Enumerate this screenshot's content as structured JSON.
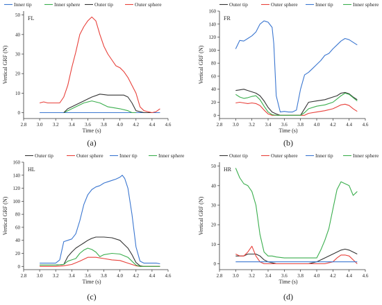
{
  "colors": {
    "Outer tip": "#333333",
    "Outer sphere": "#e8403a",
    "Inner tip": "#3a76d0",
    "Inner sphere": "#3aae4d"
  },
  "chart_data": [
    {
      "type": "line",
      "panel_letter": "(a)",
      "corner_label": "FL",
      "xlabel": "Time (s)",
      "ylabel": "Vertical GRF (N)",
      "xlim": [
        2.8,
        4.6
      ],
      "ylim": [
        -3,
        52
      ],
      "xticks": [
        "2.8",
        "3.0",
        "3.2",
        "3.4",
        "3.6",
        "3.8",
        "4.0",
        "4.2",
        "4.4",
        "4.6"
      ],
      "yticks": [
        "0",
        "10",
        "20",
        "30",
        "40",
        "50"
      ],
      "legend_order": [
        "Inner tip",
        "Inner sphere",
        "Outer tip",
        "Outer sphere"
      ],
      "legend_position": "top",
      "series": [
        {
          "name": "Inner tip",
          "x": [
            3.0,
            3.3,
            3.45,
            3.6,
            3.75,
            3.9,
            4.05,
            4.15,
            4.2,
            4.3,
            4.4,
            4.5
          ],
          "y": [
            0,
            0,
            0,
            0,
            0,
            0,
            0,
            0,
            0,
            0,
            0,
            0
          ]
        },
        {
          "name": "Inner sphere",
          "x": [
            3.3,
            3.35,
            3.45,
            3.55,
            3.65,
            3.75,
            3.85,
            4.0,
            4.1,
            4.15,
            4.2
          ],
          "y": [
            0,
            1,
            3,
            5,
            6,
            5,
            3,
            2,
            1,
            0,
            0
          ]
        },
        {
          "name": "Outer tip",
          "x": [
            3.3,
            3.35,
            3.45,
            3.55,
            3.65,
            3.75,
            3.85,
            3.95,
            4.05,
            4.1,
            4.15,
            4.2,
            4.3,
            4.4
          ],
          "y": [
            0,
            2,
            4,
            6,
            8,
            9.5,
            9,
            9,
            9,
            8,
            5,
            1,
            0,
            0
          ]
        },
        {
          "name": "Outer sphere",
          "x": [
            3.0,
            3.05,
            3.1,
            3.15,
            3.2,
            3.25,
            3.3,
            3.35,
            3.4,
            3.45,
            3.5,
            3.55,
            3.6,
            3.65,
            3.7,
            3.75,
            3.8,
            3.85,
            3.9,
            3.95,
            4.0,
            4.05,
            4.1,
            4.15,
            4.2,
            4.25,
            4.3,
            4.35,
            4.4,
            4.45,
            4.5
          ],
          "y": [
            5,
            5.5,
            5,
            5,
            5,
            5,
            8,
            14,
            23,
            31,
            40,
            44,
            47,
            49,
            47,
            40,
            34,
            30,
            27,
            24,
            23,
            21,
            18,
            14,
            10,
            3,
            1,
            0.5,
            0,
            0.5,
            2
          ]
        }
      ]
    },
    {
      "type": "line",
      "panel_letter": "(b)",
      "corner_label": "FR",
      "xlabel": "Time (s)",
      "ylabel": "Vertical GRF (N)",
      "xlim": [
        2.8,
        4.6
      ],
      "ylim": [
        -5,
        160
      ],
      "xticks": [
        "2.8",
        "3.0",
        "3.2",
        "3.4",
        "3.6",
        "3.8",
        "4.0",
        "4.2",
        "4.4",
        "4.6"
      ],
      "yticks": [
        "0",
        "20",
        "40",
        "60",
        "80",
        "100",
        "120",
        "140",
        "160"
      ],
      "legend_order": [
        "Outer tip",
        "Outer sphere",
        "Inner tip",
        "Inner sphere"
      ],
      "legend_position": "top",
      "series": [
        {
          "name": "Outer tip",
          "x": [
            3.0,
            3.05,
            3.1,
            3.15,
            3.2,
            3.25,
            3.3,
            3.35,
            3.4,
            3.45,
            3.5,
            3.55,
            3.6,
            3.65,
            3.7,
            3.75,
            3.8,
            3.85,
            3.9,
            4.0,
            4.1,
            4.2,
            4.25,
            4.3,
            4.35,
            4.4,
            4.45,
            4.5
          ],
          "y": [
            38,
            39,
            40,
            38,
            36,
            34,
            30,
            22,
            12,
            5,
            2,
            0,
            0,
            0,
            0,
            0,
            0,
            10,
            20,
            22,
            24,
            28,
            30,
            34,
            35,
            33,
            28,
            24
          ]
        },
        {
          "name": "Outer sphere",
          "x": [
            3.0,
            3.05,
            3.1,
            3.15,
            3.2,
            3.25,
            3.3,
            3.35,
            3.4,
            3.45,
            3.5,
            3.6,
            3.7,
            3.8,
            3.85,
            3.9,
            4.0,
            4.1,
            4.2,
            4.25,
            4.3,
            4.35,
            4.4,
            4.45,
            4.5
          ],
          "y": [
            19,
            20,
            19,
            18,
            19,
            18,
            15,
            8,
            2,
            0,
            0,
            0,
            0,
            0,
            0,
            3,
            5,
            7,
            10,
            13,
            16,
            17,
            15,
            10,
            6
          ]
        },
        {
          "name": "Inner tip",
          "x": [
            3.0,
            3.05,
            3.1,
            3.15,
            3.2,
            3.25,
            3.3,
            3.35,
            3.4,
            3.45,
            3.47,
            3.5,
            3.55,
            3.6,
            3.65,
            3.7,
            3.75,
            3.8,
            3.85,
            3.9,
            3.95,
            4.0,
            4.05,
            4.1,
            4.15,
            4.2,
            4.25,
            4.3,
            4.35,
            4.4,
            4.45,
            4.5
          ],
          "y": [
            102,
            115,
            114,
            118,
            122,
            128,
            140,
            145,
            143,
            135,
            110,
            30,
            5,
            6,
            5,
            5,
            8,
            40,
            62,
            66,
            72,
            78,
            84,
            92,
            95,
            102,
            108,
            114,
            118,
            116,
            112,
            108
          ]
        },
        {
          "name": "Inner sphere",
          "x": [
            3.0,
            3.05,
            3.1,
            3.15,
            3.2,
            3.25,
            3.3,
            3.35,
            3.4,
            3.45,
            3.5,
            3.6,
            3.7,
            3.8,
            3.85,
            3.9,
            4.0,
            4.1,
            4.2,
            4.25,
            4.3,
            4.35,
            4.4,
            4.45,
            4.5
          ],
          "y": [
            32,
            28,
            26,
            27,
            29,
            30,
            24,
            14,
            5,
            1,
            0,
            0,
            0,
            0,
            4,
            10,
            14,
            16,
            20,
            25,
            30,
            34,
            32,
            27,
            22
          ]
        }
      ]
    },
    {
      "type": "line",
      "panel_letter": "(c)",
      "corner_label": "HL",
      "xlabel": "Time (s)",
      "ylabel": "Vertical GRF (N)",
      "xlim": [
        2.8,
        4.6
      ],
      "ylim": [
        -5,
        160
      ],
      "xticks": [
        "2.8",
        "3.0",
        "3.2",
        "3.4",
        "3.6",
        "3.8",
        "4.0",
        "4.2",
        "4.4",
        "4.6"
      ],
      "yticks": [
        "0",
        "20",
        "40",
        "60",
        "80",
        "100",
        "120",
        "140",
        "160"
      ],
      "legend_order": [
        "Outer tip",
        "Outer sphere",
        "Inner tip",
        "Inner sphere"
      ],
      "legend_position": "top",
      "series": [
        {
          "name": "Outer tip",
          "x": [
            3.0,
            3.2,
            3.3,
            3.35,
            3.4,
            3.45,
            3.5,
            3.55,
            3.6,
            3.65,
            3.7,
            3.8,
            3.9,
            4.0,
            4.05,
            4.1,
            4.15,
            4.2,
            4.25,
            4.3,
            4.5
          ],
          "y": [
            2,
            2,
            3,
            15,
            22,
            28,
            32,
            36,
            40,
            43,
            45,
            45,
            44,
            40,
            34,
            28,
            18,
            6,
            1,
            0,
            0
          ]
        },
        {
          "name": "Outer sphere",
          "x": [
            3.0,
            3.2,
            3.3,
            3.4,
            3.5,
            3.6,
            3.7,
            3.8,
            3.9,
            4.0,
            4.1,
            4.2,
            4.25,
            4.3,
            4.5
          ],
          "y": [
            0,
            0,
            1,
            3,
            8,
            14,
            14,
            12,
            10,
            9,
            5,
            1,
            0,
            0,
            0
          ]
        },
        {
          "name": "Inner tip",
          "x": [
            3.0,
            3.1,
            3.2,
            3.25,
            3.3,
            3.35,
            3.4,
            3.45,
            3.5,
            3.55,
            3.6,
            3.65,
            3.7,
            3.75,
            3.8,
            3.85,
            3.9,
            3.95,
            4.0,
            4.03,
            4.06,
            4.1,
            4.15,
            4.2,
            4.25,
            4.3,
            4.35,
            4.4,
            4.45,
            4.5
          ],
          "y": [
            5,
            5,
            5,
            10,
            38,
            40,
            42,
            50,
            70,
            95,
            110,
            118,
            122,
            124,
            128,
            130,
            132,
            134,
            137,
            140,
            135,
            120,
            80,
            30,
            8,
            5,
            5,
            5,
            5,
            4
          ]
        },
        {
          "name": "Inner sphere",
          "x": [
            3.0,
            3.2,
            3.3,
            3.35,
            3.4,
            3.45,
            3.5,
            3.55,
            3.6,
            3.65,
            3.7,
            3.75,
            3.8,
            3.9,
            4.0,
            4.1,
            4.15,
            4.2,
            4.25,
            4.3,
            4.5
          ],
          "y": [
            2,
            2,
            3,
            8,
            10,
            12,
            20,
            25,
            28,
            26,
            22,
            15,
            18,
            20,
            19,
            14,
            8,
            2,
            0,
            0,
            0
          ]
        }
      ]
    },
    {
      "type": "line",
      "panel_letter": "(d)",
      "corner_label": "HR",
      "xlabel": "Time (s)",
      "ylabel": "Vertical GRF (N)",
      "xlim": [
        2.8,
        4.6
      ],
      "ylim": [
        -3,
        52
      ],
      "xticks": [
        "2.8",
        "3.0",
        "3.2",
        "3.4",
        "3.6",
        "3.8",
        "4.0",
        "4.2",
        "4.4",
        "4.6"
      ],
      "yticks": [
        "0",
        "10",
        "20",
        "30",
        "40",
        "50"
      ],
      "legend_order": [
        "Outer tip",
        "Outer sphere",
        "Inner tip",
        "Inner sphere"
      ],
      "legend_position": "top",
      "series": [
        {
          "name": "Outer tip",
          "x": [
            3.0,
            3.05,
            3.1,
            3.15,
            3.2,
            3.25,
            3.3,
            3.35,
            3.4,
            3.5,
            3.6,
            3.7,
            3.8,
            3.9,
            4.0,
            4.1,
            4.2,
            4.25,
            4.3,
            4.35,
            4.4,
            4.45,
            4.5
          ],
          "y": [
            4,
            4,
            4,
            5,
            5,
            5,
            4,
            2,
            1,
            0,
            0,
            0,
            0,
            0,
            1,
            3,
            5,
            6,
            7,
            7.5,
            7,
            6,
            5
          ]
        },
        {
          "name": "Outer sphere",
          "x": [
            3.0,
            3.05,
            3.1,
            3.15,
            3.2,
            3.25,
            3.3,
            3.35,
            3.4,
            3.5,
            3.6,
            3.7,
            3.8,
            3.9,
            4.0,
            4.1,
            4.2,
            4.25,
            4.3,
            4.35,
            4.4,
            4.45,
            4.5
          ],
          "y": [
            5,
            4,
            4,
            6,
            9,
            4,
            1,
            0,
            0,
            0,
            0,
            0,
            0,
            0,
            0,
            0,
            1,
            3,
            4.5,
            4.5,
            4,
            2,
            0
          ]
        },
        {
          "name": "Inner tip",
          "x": [
            3.0,
            3.2,
            3.3,
            3.4,
            3.5,
            3.6,
            3.7,
            3.8,
            3.9,
            4.0,
            4.1,
            4.2,
            4.3,
            4.4,
            4.5
          ],
          "y": [
            1,
            1,
            1,
            1,
            1,
            1,
            1,
            1,
            1,
            1,
            1,
            1,
            1,
            1,
            1
          ]
        },
        {
          "name": "Inner sphere",
          "x": [
            3.0,
            3.05,
            3.1,
            3.15,
            3.2,
            3.25,
            3.3,
            3.35,
            3.4,
            3.45,
            3.5,
            3.6,
            3.7,
            3.8,
            3.9,
            4.0,
            4.05,
            4.1,
            4.15,
            4.2,
            4.25,
            4.3,
            4.35,
            4.4,
            4.45,
            4.5
          ],
          "y": [
            49,
            44,
            41,
            40,
            37,
            30,
            15,
            6,
            4,
            4,
            3.5,
            3,
            3,
            3,
            3,
            3,
            7,
            12,
            18,
            28,
            38,
            42,
            41,
            40,
            35,
            37
          ]
        }
      ]
    }
  ]
}
